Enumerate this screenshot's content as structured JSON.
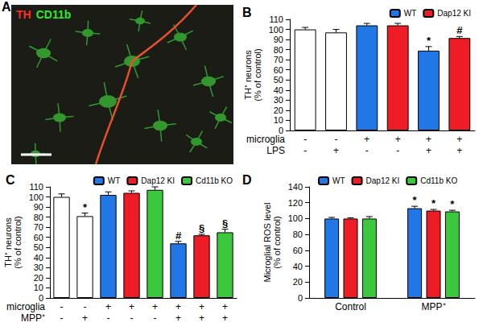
{
  "image_panel": {
    "label": "A",
    "stains": [
      {
        "text": "TH",
        "color": "#ff2a2a"
      },
      {
        "text": "CD11b",
        "color": "#2ee82e"
      }
    ]
  },
  "chart_data": [
    {
      "type": "bar",
      "title": "B",
      "ylabel": "TH⁺ neurons\n(% of control)",
      "categories": [
        null,
        null,
        null,
        null,
        null,
        null
      ],
      "condition_rows": [
        {
          "label": "microglia",
          "signs": [
            "-",
            "-",
            "+",
            "+",
            "+",
            "+"
          ]
        },
        {
          "label": "LPS",
          "signs": [
            "-",
            "+",
            "-",
            "-",
            "+",
            "+"
          ]
        }
      ],
      "series": [
        {
          "color": "#ffffff",
          "values": [
            100,
            97,
            null,
            null,
            null,
            null
          ],
          "errors": [
            2,
            3,
            null,
            null,
            null,
            null
          ],
          "significance": [
            null,
            null,
            null,
            null,
            null,
            null
          ]
        },
        {
          "name": "WT",
          "color": "#2277e6",
          "values": [
            null,
            null,
            104,
            null,
            79,
            null
          ],
          "errors": [
            null,
            null,
            2,
            null,
            4,
            null
          ],
          "significance": [
            null,
            null,
            null,
            null,
            "*",
            null
          ]
        },
        {
          "name": "Dap12 KI",
          "color": "#ee1c25",
          "values": [
            null,
            null,
            null,
            104,
            null,
            91.5
          ],
          "errors": [
            null,
            null,
            null,
            2,
            null,
            1.5
          ],
          "significance": [
            null,
            null,
            null,
            null,
            null,
            "#"
          ]
        }
      ],
      "ylim": [
        0,
        110
      ],
      "yticks": [
        0,
        10,
        20,
        30,
        40,
        50,
        60,
        70,
        80,
        90,
        100,
        110
      ],
      "legend": "top right",
      "grid": false
    },
    {
      "type": "bar",
      "title": "C",
      "ylabel": "TH⁺ neurons\n(% of control)",
      "categories": [
        null,
        null,
        null,
        null,
        null,
        null,
        null,
        null
      ],
      "condition_rows": [
        {
          "label": "microglia",
          "signs": [
            "-",
            "-",
            "+",
            "+",
            "+",
            "+",
            "+",
            "+"
          ]
        },
        {
          "label": "MPP⁺",
          "signs": [
            "-",
            "+",
            "-",
            "-",
            "-",
            "+",
            "+",
            "+"
          ]
        }
      ],
      "series": [
        {
          "color": "#ffffff",
          "values": [
            100,
            81,
            null,
            null,
            null,
            null,
            null,
            null
          ],
          "errors": [
            3,
            3,
            null,
            null,
            null,
            null,
            null,
            null
          ],
          "significance": [
            null,
            "*",
            null,
            null,
            null,
            null,
            null,
            null
          ]
        },
        {
          "name": "WT",
          "color": "#2277e6",
          "values": [
            null,
            null,
            102,
            null,
            null,
            54,
            null,
            null
          ],
          "errors": [
            null,
            null,
            3,
            null,
            null,
            2,
            null,
            null
          ],
          "significance": [
            null,
            null,
            null,
            null,
            null,
            "#",
            null,
            null
          ]
        },
        {
          "name": "Dap12 KI",
          "color": "#ee1c25",
          "values": [
            null,
            null,
            null,
            104,
            null,
            null,
            62,
            null
          ],
          "errors": [
            null,
            null,
            null,
            2,
            null,
            null,
            1,
            null
          ],
          "significance": [
            null,
            null,
            null,
            null,
            null,
            null,
            "§",
            null
          ]
        },
        {
          "name": "Cd11b KO",
          "color": "#3cc83c",
          "values": [
            null,
            null,
            null,
            null,
            107,
            null,
            null,
            65
          ],
          "errors": [
            null,
            null,
            null,
            null,
            3,
            null,
            null,
            3
          ],
          "significance": [
            null,
            null,
            null,
            null,
            null,
            null,
            null,
            "§"
          ]
        }
      ],
      "ylim": [
        0,
        110
      ],
      "yticks": [
        0,
        10,
        20,
        30,
        40,
        50,
        60,
        70,
        80,
        90,
        100,
        110
      ],
      "legend": "top right",
      "grid": false
    },
    {
      "type": "bar",
      "title": "D",
      "ylabel": "Microglial ROS level\n(% of control)",
      "categories": [
        "Control",
        "MPP⁺"
      ],
      "series": [
        {
          "name": "WT",
          "color": "#2277e6",
          "values": [
            100,
            113
          ],
          "errors": [
            1.5,
            2.5
          ],
          "significance": [
            null,
            "*"
          ]
        },
        {
          "name": "Dap12 KI",
          "color": "#ee1c25",
          "values": [
            100,
            110
          ],
          "errors": [
            1,
            1.5
          ],
          "significance": [
            null,
            "*"
          ]
        },
        {
          "name": "Cd11b KO",
          "color": "#3cc83c",
          "values": [
            100,
            109
          ],
          "errors": [
            2.5,
            1.5
          ],
          "significance": [
            null,
            "*"
          ]
        }
      ],
      "ylim": [
        0,
        140
      ],
      "yticks": [
        0,
        20,
        40,
        60,
        80,
        100,
        120,
        140
      ],
      "legend": "top left",
      "grid": false
    }
  ]
}
